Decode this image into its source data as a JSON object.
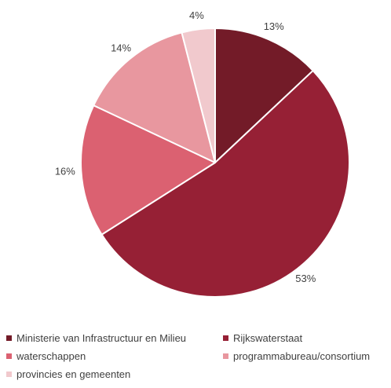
{
  "chart_data": {
    "type": "pie",
    "title": "",
    "slices": [
      {
        "label": "Ministerie van Infrastructuur en Milieu",
        "value": 13,
        "display": "13%",
        "color": "#731b28"
      },
      {
        "label": "Rijkswaterstaat",
        "value": 53,
        "display": "53%",
        "color": "#962035"
      },
      {
        "label": "waterschappen",
        "value": 16,
        "display": "16%",
        "color": "#db6171"
      },
      {
        "label": "programmabureau/consortium",
        "value": 14,
        "display": "14%",
        "color": "#e8979f"
      },
      {
        "label": "provincies en gemeenten",
        "value": 4,
        "display": "4%",
        "color": "#f1c9cd"
      }
    ],
    "legend_position": "bottom"
  }
}
